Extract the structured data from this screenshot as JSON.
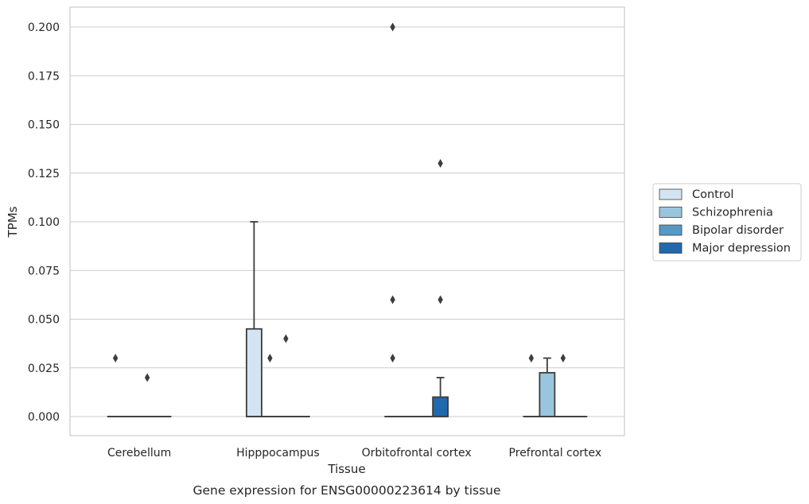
{
  "chart_data": {
    "type": "box",
    "title": "",
    "caption": "Gene expression for ENSG00000223614 by tissue",
    "xlabel": "Tissue",
    "ylabel": "TPMs",
    "ylim": [
      -0.01,
      0.21
    ],
    "yticks": [
      "0.000",
      "0.025",
      "0.050",
      "0.075",
      "0.100",
      "0.125",
      "0.150",
      "0.175",
      "0.200"
    ],
    "ytick_values": [
      0,
      0.025,
      0.05,
      0.075,
      0.1,
      0.125,
      0.15,
      0.175,
      0.2
    ],
    "grid": "horizontal",
    "legend_position": "right",
    "categories": [
      "Cerebellum",
      "Hipppocampus",
      "Orbitofrontal cortex",
      "Prefrontal cortex"
    ],
    "series": [
      {
        "name": "Control",
        "color": "#d3e4f3",
        "boxes": [
          {
            "q1": 0,
            "median": 0,
            "q3": 0,
            "whisker_low": 0,
            "whisker_high": 0,
            "outliers": [
              0.03
            ]
          },
          {
            "q1": 0,
            "median": 0,
            "q3": 0.045,
            "whisker_low": 0,
            "whisker_high": 0.1,
            "outliers": []
          },
          {
            "q1": 0,
            "median": 0,
            "q3": 0,
            "whisker_low": 0,
            "whisker_high": 0,
            "outliers": [
              0.03,
              0.06,
              0.2
            ]
          },
          {
            "q1": 0,
            "median": 0,
            "q3": 0,
            "whisker_low": 0,
            "whisker_high": 0,
            "outliers": [
              0.03
            ]
          }
        ]
      },
      {
        "name": "Schizophrenia",
        "color": "#9ac5de",
        "boxes": [
          {
            "q1": 0,
            "median": 0,
            "q3": 0,
            "whisker_low": 0,
            "whisker_high": 0,
            "outliers": []
          },
          {
            "q1": 0,
            "median": 0,
            "q3": 0,
            "whisker_low": 0,
            "whisker_high": 0,
            "outliers": [
              0.03
            ]
          },
          {
            "q1": 0,
            "median": 0,
            "q3": 0,
            "whisker_low": 0,
            "whisker_high": 0,
            "outliers": []
          },
          {
            "q1": 0,
            "median": 0,
            "q3": 0.0225,
            "whisker_low": 0,
            "whisker_high": 0.03,
            "outliers": []
          }
        ]
      },
      {
        "name": "Bipolar disorder",
        "color": "#5599c7",
        "boxes": [
          {
            "q1": 0,
            "median": 0,
            "q3": 0,
            "whisker_low": 0,
            "whisker_high": 0,
            "outliers": [
              0.02
            ]
          },
          {
            "q1": 0,
            "median": 0,
            "q3": 0,
            "whisker_low": 0,
            "whisker_high": 0,
            "outliers": [
              0.04
            ]
          },
          {
            "q1": 0,
            "median": 0,
            "q3": 0,
            "whisker_low": 0,
            "whisker_high": 0,
            "outliers": []
          },
          {
            "q1": 0,
            "median": 0,
            "q3": 0,
            "whisker_low": 0,
            "whisker_high": 0,
            "outliers": [
              0.03
            ]
          }
        ]
      },
      {
        "name": "Major depression",
        "color": "#2268ad",
        "boxes": [
          {
            "q1": 0,
            "median": 0,
            "q3": 0,
            "whisker_low": 0,
            "whisker_high": 0,
            "outliers": []
          },
          {
            "q1": 0,
            "median": 0,
            "q3": 0,
            "whisker_low": 0,
            "whisker_high": 0,
            "outliers": []
          },
          {
            "q1": 0,
            "median": 0,
            "q3": 0.01,
            "whisker_low": 0,
            "whisker_high": 0.02,
            "outliers": [
              0.06,
              0.13
            ]
          },
          {
            "q1": 0,
            "median": 0,
            "q3": 0,
            "whisker_low": 0,
            "whisker_high": 0,
            "outliers": []
          }
        ]
      }
    ]
  }
}
